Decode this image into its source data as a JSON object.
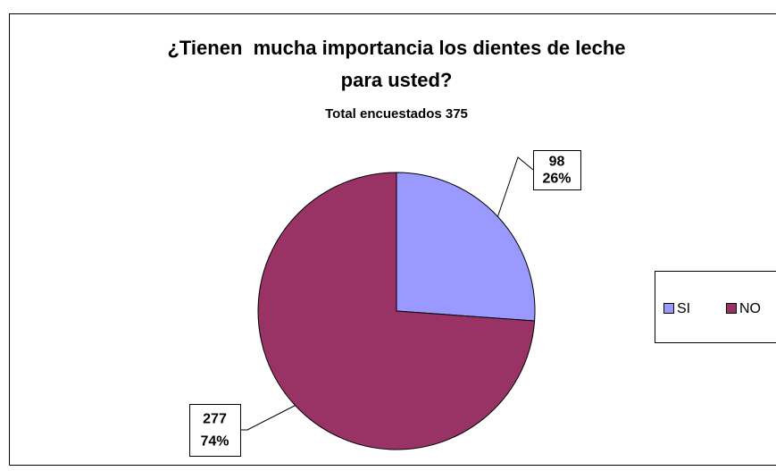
{
  "chart_data": {
    "type": "pie",
    "title": [
      "¿Tienen  mucha importancia los dientes de leche",
      "para usted?"
    ],
    "subtitle": "Total encuestados 375",
    "categories": [
      "SI",
      "NO"
    ],
    "values": [
      98,
      277
    ],
    "percent_labels": [
      "26%",
      "74%"
    ],
    "colors": [
      "#9999ff",
      "#993366"
    ],
    "legend": "right"
  }
}
